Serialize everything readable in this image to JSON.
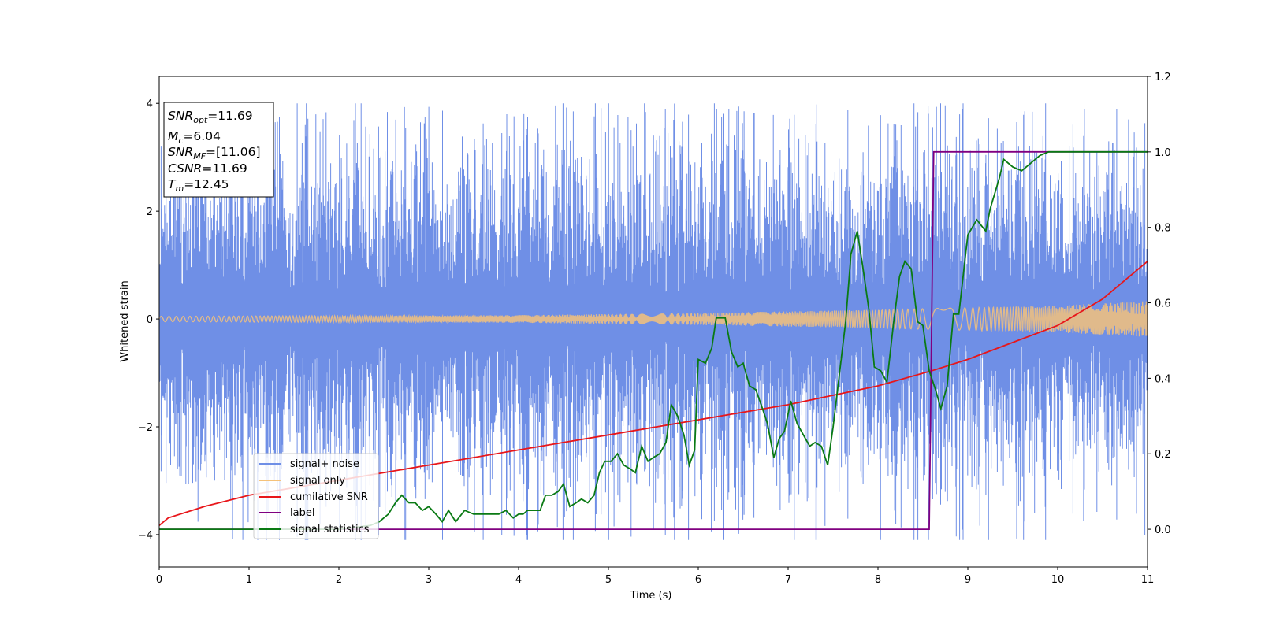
{
  "chart_data": {
    "type": "line",
    "title": "",
    "xlabel": "Time (s)",
    "ylabel": "Whitened strain",
    "xlim": [
      0,
      11
    ],
    "ylim": [
      -4.6,
      4.5
    ],
    "y2lim": [
      -0.1,
      1.2
    ],
    "x_ticks": [
      0,
      1,
      2,
      3,
      4,
      5,
      6,
      7,
      8,
      9,
      10,
      11
    ],
    "y_ticks": [
      -4,
      -2,
      0,
      2,
      4
    ],
    "y2_ticks": [
      "0.0",
      "0.2",
      "0.4",
      "0.6",
      "0.8",
      "1.0",
      "1.2"
    ],
    "grid": false,
    "legend_position": "lower-left",
    "legend": [
      "signal+ noise",
      "signal only",
      "cumilative SNR",
      "label",
      "signal statistics"
    ],
    "colors": {
      "signal_noise": "#6f8fe6",
      "signal_only": "#f5c27a",
      "cumulative_snr": "#e8161a",
      "label": "#800080",
      "signal_statistics": "#0a7a14"
    },
    "annotation": {
      "snr_opt": {
        "sym": "SNR",
        "sub": "opt",
        "value": "=11.69"
      },
      "mc": {
        "sym": "M",
        "sub": "c",
        "value": "=6.04"
      },
      "snr_mf": {
        "sym": "SNR",
        "sub": "MF",
        "value": "=[11.06]"
      },
      "csnr": {
        "sym": "CSNR",
        "sub": "",
        "value": "=11.69"
      },
      "tm": {
        "sym": "T",
        "sub": "m",
        "value": "=12.45"
      }
    },
    "series": [
      {
        "name": "signal+ noise",
        "axis": "left",
        "style": "noise band",
        "typical_range": [
          -2.4,
          2.4
        ],
        "extremes": [
          -4.1,
          4.0
        ]
      },
      {
        "name": "signal only",
        "axis": "left",
        "style": "oscillating chirp",
        "amplitude_points": [
          [
            0,
            0.05
          ],
          [
            2,
            0.06
          ],
          [
            4,
            0.07
          ],
          [
            6,
            0.11
          ],
          [
            8,
            0.17
          ],
          [
            10,
            0.25
          ],
          [
            11,
            0.33
          ]
        ]
      },
      {
        "name": "cumilative SNR",
        "axis": "right",
        "x": [
          0,
          0.1,
          0.5,
          1,
          2,
          3,
          4,
          5,
          6,
          7,
          8,
          8.6,
          9,
          10,
          10.5,
          11
        ],
        "y": [
          0.01,
          0.03,
          0.06,
          0.09,
          0.13,
          0.17,
          0.21,
          0.25,
          0.29,
          0.33,
          0.38,
          0.42,
          0.45,
          0.54,
          0.61,
          0.71
        ]
      },
      {
        "name": "label",
        "axis": "right",
        "x": [
          0,
          8.57,
          8.62,
          11
        ],
        "y": [
          0.0,
          0.0,
          1.0,
          1.0
        ]
      },
      {
        "name": "signal statistics",
        "axis": "right",
        "x": [
          0,
          0.5,
          1,
          1.5,
          2,
          2.35,
          2.45,
          2.55,
          2.63,
          2.7,
          2.78,
          2.85,
          2.93,
          3.0,
          3.08,
          3.15,
          3.22,
          3.3,
          3.4,
          3.5,
          3.6,
          3.7,
          3.78,
          3.86,
          3.94,
          4.0,
          4.05,
          4.1,
          4.17,
          4.24,
          4.3,
          4.37,
          4.44,
          4.5,
          4.57,
          4.64,
          4.7,
          4.77,
          4.84,
          4.9,
          4.96,
          5.03,
          5.1,
          5.17,
          5.24,
          5.3,
          5.37,
          5.44,
          5.5,
          5.57,
          5.64,
          5.7,
          5.77,
          5.84,
          5.9,
          5.96,
          6.0,
          6.08,
          6.15,
          6.2,
          6.3,
          6.37,
          6.44,
          6.5,
          6.57,
          6.64,
          6.7,
          6.77,
          6.84,
          6.9,
          6.96,
          7.03,
          7.1,
          7.17,
          7.24,
          7.3,
          7.37,
          7.44,
          7.5,
          7.57,
          7.64,
          7.7,
          7.77,
          7.84,
          7.9,
          7.96,
          8.03,
          8.1,
          8.17,
          8.24,
          8.3,
          8.37,
          8.44,
          8.5,
          8.57,
          8.64,
          8.7,
          8.77,
          8.84,
          8.9,
          9.0,
          9.1,
          9.2,
          9.25,
          9.3,
          9.35,
          9.4,
          9.5,
          9.6,
          9.7,
          9.8,
          9.9,
          10.0,
          10.2,
          10.4,
          10.6,
          10.8,
          11.0
        ],
        "y": [
          0.0,
          0.0,
          0.0,
          0.0,
          0.0,
          0.01,
          0.02,
          0.04,
          0.07,
          0.09,
          0.07,
          0.07,
          0.05,
          0.06,
          0.04,
          0.02,
          0.05,
          0.02,
          0.05,
          0.04,
          0.04,
          0.04,
          0.04,
          0.05,
          0.03,
          0.04,
          0.04,
          0.05,
          0.05,
          0.05,
          0.09,
          0.09,
          0.1,
          0.12,
          0.06,
          0.07,
          0.08,
          0.07,
          0.09,
          0.15,
          0.18,
          0.18,
          0.2,
          0.17,
          0.16,
          0.15,
          0.22,
          0.18,
          0.19,
          0.2,
          0.23,
          0.33,
          0.3,
          0.25,
          0.17,
          0.21,
          0.45,
          0.44,
          0.48,
          0.56,
          0.56,
          0.47,
          0.43,
          0.44,
          0.38,
          0.37,
          0.33,
          0.28,
          0.19,
          0.24,
          0.26,
          0.34,
          0.28,
          0.25,
          0.22,
          0.23,
          0.22,
          0.17,
          0.27,
          0.41,
          0.55,
          0.73,
          0.79,
          0.68,
          0.58,
          0.43,
          0.42,
          0.39,
          0.54,
          0.67,
          0.71,
          0.69,
          0.55,
          0.54,
          0.42,
          0.37,
          0.32,
          0.38,
          0.57,
          0.57,
          0.78,
          0.82,
          0.79,
          0.85,
          0.89,
          0.93,
          0.98,
          0.96,
          0.95,
          0.97,
          0.99,
          1.0,
          1.0,
          1.0,
          1.0,
          1.0,
          1.0,
          1.0
        ]
      }
    ]
  }
}
